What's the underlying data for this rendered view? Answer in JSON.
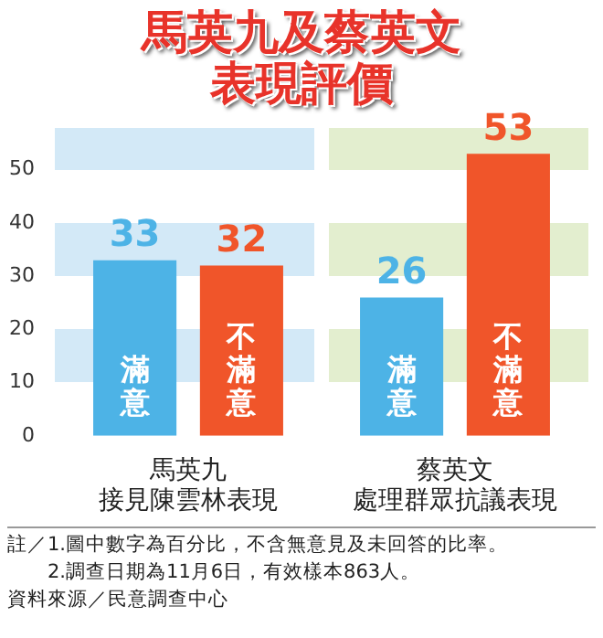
{
  "chart_data": {
    "type": "bar",
    "title": "馬英九及蔡英文表現評價",
    "categories": [
      "馬英九接見陳雲林表現",
      "蔡英文處理群眾抗議表現"
    ],
    "series": [
      {
        "name": "滿意",
        "color": "#4db3e6",
        "values": [
          33,
          26
        ]
      },
      {
        "name": "不滿意",
        "color": "#f0552a",
        "values": [
          32,
          53
        ]
      }
    ],
    "ylim": [
      0,
      58
    ],
    "yticks": [
      0,
      10,
      20,
      30,
      40,
      50
    ],
    "data_labels": true,
    "legend": false,
    "annotations": [
      "註／1.圖中數字為百分比，不含無意見及未回答的比率。",
      "2.調查日期為11月6日，有效樣本863人。",
      "資料來源／民意調查中心"
    ]
  }
}
